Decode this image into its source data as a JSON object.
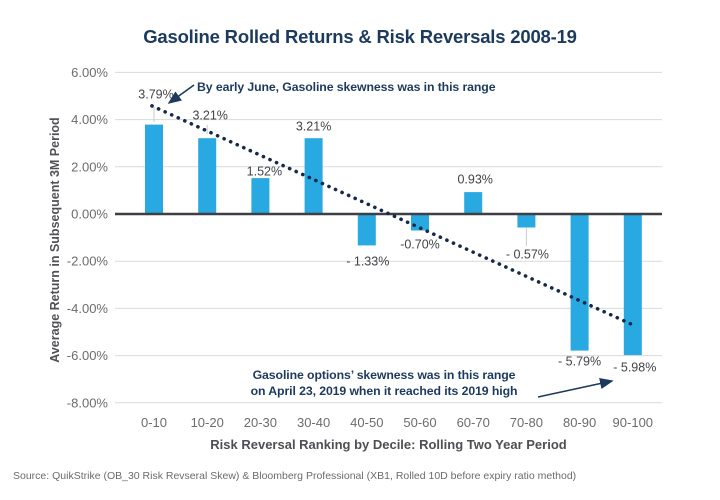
{
  "chart_data": {
    "type": "bar",
    "title": "Gasoline Rolled Returns & Risk Reversals 2008-19",
    "categories": [
      "0-10",
      "10-20",
      "20-30",
      "30-40",
      "40-50",
      "50-60",
      "60-70",
      "70-80",
      "80-90",
      "90-100"
    ],
    "values": [
      3.79,
      3.21,
      1.52,
      3.21,
      -1.33,
      -0.7,
      0.93,
      -0.57,
      -5.79,
      -5.98
    ],
    "value_labels": [
      "3.79%",
      "3.21%",
      "1.52%",
      "3.21%",
      "- 1.33%",
      "-0.70%",
      "0.93%",
      "- 0.57%",
      "- 5.79%",
      "- 5.98%"
    ],
    "xlabel": "Risk Reversal Ranking by Decile: Rolling Two Year Period",
    "ylabel": "Average Return in Subsequent 3M Period",
    "ylim": [
      -8,
      6
    ],
    "yticks": [
      6,
      4,
      2,
      0,
      -2,
      -4,
      -6,
      -8
    ],
    "ytick_labels": [
      "6.00%",
      "4.00%",
      "2.00%",
      "0.00%",
      "-2.00%",
      "-4.00%",
      "-6.00%",
      "-8.00%"
    ],
    "grid": "horizontal",
    "legend": "none",
    "trendline": {
      "style": "dotted",
      "start_value": 4.58,
      "end_value": -4.66
    }
  },
  "annotations": {
    "top": {
      "text": "By early June, Gasoline skewness was in this range"
    },
    "bottom": {
      "line1": "Gasoline options’ skewness was in this range",
      "line2": "on April 23, 2019 when it reached its 2019 high"
    }
  },
  "source": {
    "text": "Source: QuikStrike (OB_30 Risk Revseral Skew) & Bloomberg Professional (XB1, Rolled 10D before expiry ratio method)"
  },
  "colors": {
    "bar": "#29A9E1",
    "navy": "#1C3A5E",
    "trend_dot": "#16294B",
    "grid": "#D9DADB",
    "zero_line": "#3E3F42",
    "tick_text": "#6B6C6F",
    "value_text": "#414347",
    "leader": "#C9CACB"
  }
}
